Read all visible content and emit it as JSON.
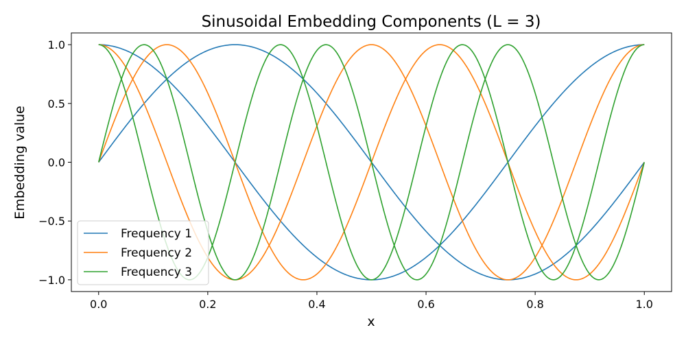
{
  "chart_data": {
    "type": "line",
    "title": "Sinusoidal Embedding Components (L = 3)",
    "xlabel": "x",
    "ylabel": "Embedding value",
    "xlim": [
      -0.05,
      1.05
    ],
    "ylim": [
      -1.1,
      1.1
    ],
    "xticks": [
      0.0,
      0.2,
      0.4,
      0.6,
      0.8,
      1.0
    ],
    "xtick_labels": [
      "0.0",
      "0.2",
      "0.4",
      "0.6",
      "0.8",
      "1.0"
    ],
    "yticks": [
      1.0,
      0.5,
      0.0,
      -0.5,
      -1.0
    ],
    "ytick_labels": [
      "1.0",
      "0.5",
      "0.0",
      "−0.5",
      "−1.0"
    ],
    "grid": false,
    "legend_position": "lower-left",
    "series": [
      {
        "name": "Frequency 1",
        "color": "#1f77b4",
        "components": [
          {
            "fn": "sin",
            "cycles_over_domain": 1
          },
          {
            "fn": "cos",
            "cycles_over_domain": 1
          }
        ]
      },
      {
        "name": "Frequency 2",
        "color": "#ff7f0e",
        "components": [
          {
            "fn": "sin",
            "cycles_over_domain": 2
          },
          {
            "fn": "cos",
            "cycles_over_domain": 2
          }
        ]
      },
      {
        "name": "Frequency 3",
        "color": "#2ca02c",
        "components": [
          {
            "fn": "sin",
            "cycles_over_domain": 3
          },
          {
            "fn": "cos",
            "cycles_over_domain": 3
          }
        ]
      }
    ],
    "x_domain": [
      0.0,
      1.0
    ]
  }
}
